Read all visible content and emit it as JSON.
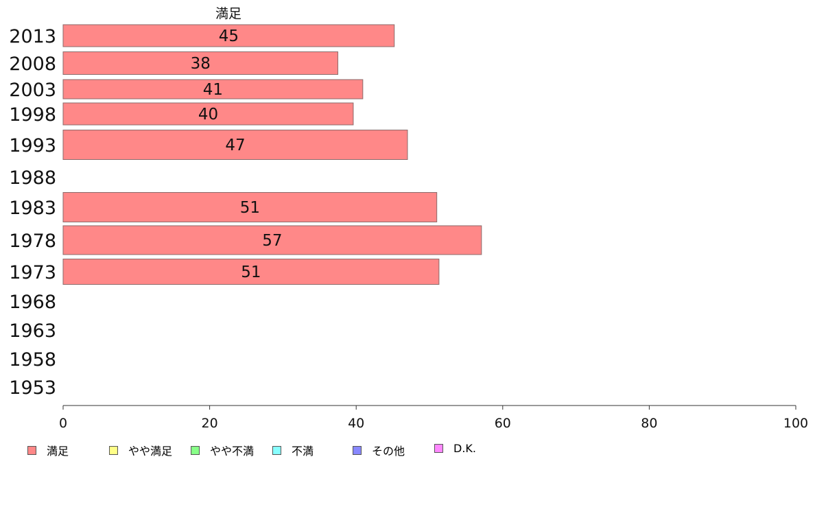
{
  "chart_data": {
    "type": "bar",
    "orientation": "horizontal",
    "series_title": "満足",
    "categories": [
      "2013",
      "2008",
      "2003",
      "1998",
      "1993",
      "1988",
      "1983",
      "1978",
      "1973",
      "1968",
      "1963",
      "1958",
      "1953"
    ],
    "series": [
      {
        "name": "満足",
        "color": "#ff8888",
        "values": [
          45.2,
          37.5,
          40.9,
          39.6,
          47.0,
          null,
          51.0,
          57.1,
          51.3,
          null,
          null,
          null,
          null
        ],
        "labels": [
          "45",
          "38",
          "41",
          "40",
          "47",
          "",
          "51",
          "57",
          "51",
          "",
          "",
          "",
          ""
        ]
      }
    ],
    "xlim": [
      0,
      100
    ],
    "xticks": [
      "0",
      "20",
      "40",
      "60",
      "80",
      "100"
    ],
    "legend": {
      "placement": "bottom-left",
      "items": [
        {
          "label": "満足",
          "color": "#ff8888"
        },
        {
          "label": "やや満足",
          "color": "#ffff88"
        },
        {
          "label": "やや不満",
          "color": "#88ff88"
        },
        {
          "label": "不満",
          "color": "#88ffff"
        },
        {
          "label": "その他",
          "color": "#8888ff"
        },
        {
          "label": "D.K.",
          "color": "#ff88ff"
        }
      ]
    }
  }
}
